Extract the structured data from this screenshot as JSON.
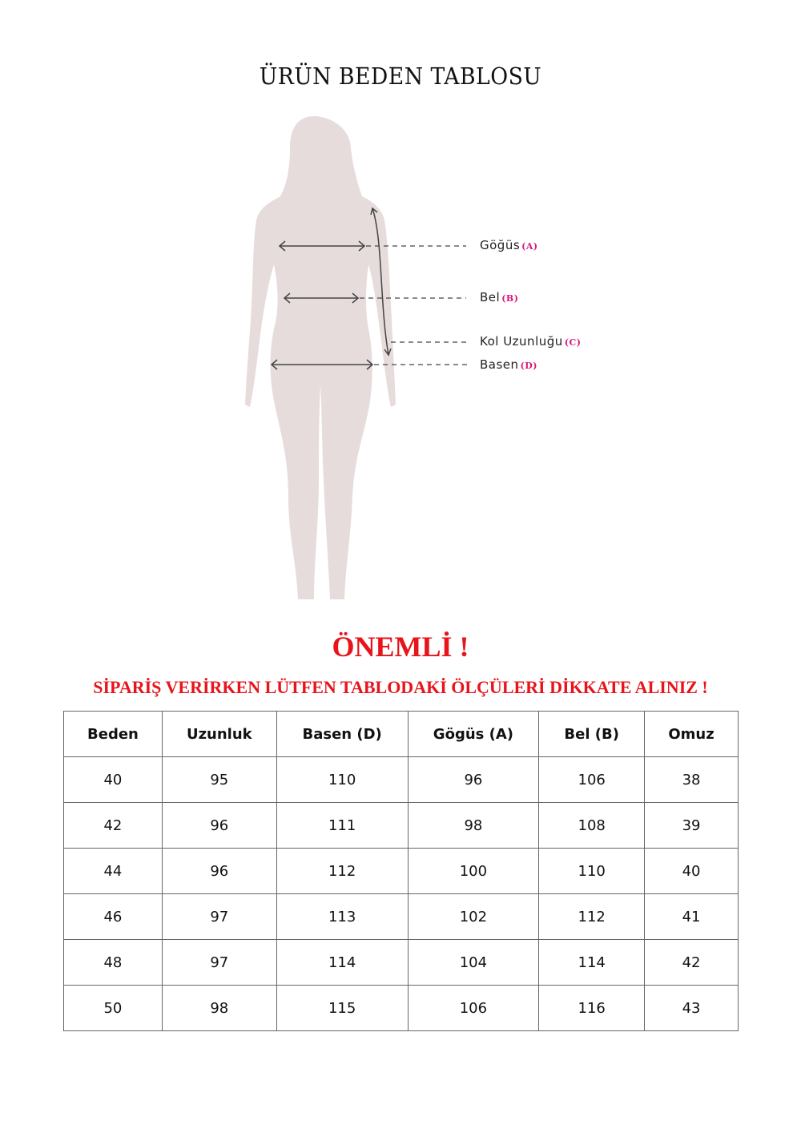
{
  "title": "ÜRÜN BEDEN TABLOSU",
  "figure": {
    "labels": [
      {
        "text": "Göğüs",
        "code": "(A)"
      },
      {
        "text": "Bel",
        "code": "(B)"
      },
      {
        "text": "Kol Uzunluğu",
        "code": "(C)"
      },
      {
        "text": "Basen",
        "code": "(D)"
      }
    ],
    "colors": {
      "silhouette": "#e6dcdc",
      "code": "#d9177a"
    }
  },
  "notice": {
    "heading": "ÖNEMLİ !",
    "text": "SİPARİŞ VERİRKEN LÜTFEN TABLODAKİ ÖLÇÜLERİ DİKKATE ALINIZ !",
    "color": "#e8141b"
  },
  "table": {
    "headers": [
      "Beden",
      "Uzunluk",
      "Basen (D)",
      "Gögüs (A)",
      "Bel (B)",
      "Omuz"
    ],
    "rows": [
      [
        "40",
        "95",
        "110",
        "96",
        "106",
        "38"
      ],
      [
        "42",
        "96",
        "111",
        "98",
        "108",
        "39"
      ],
      [
        "44",
        "96",
        "112",
        "100",
        "110",
        "40"
      ],
      [
        "46",
        "97",
        "113",
        "102",
        "112",
        "41"
      ],
      [
        "48",
        "97",
        "114",
        "104",
        "114",
        "42"
      ],
      [
        "50",
        "98",
        "115",
        "106",
        "116",
        "43"
      ]
    ]
  }
}
